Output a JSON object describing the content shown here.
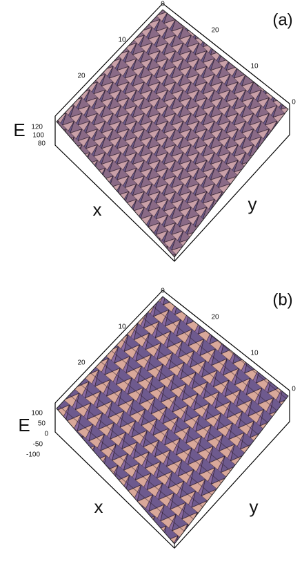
{
  "panels": [
    {
      "label": "(a)",
      "z_label": "E",
      "x_label": "x",
      "y_label": "y",
      "z_ticks": [
        120,
        100,
        80
      ],
      "x_ticks": [
        0,
        10,
        20
      ],
      "y_ticks": [
        20,
        10,
        0
      ]
    },
    {
      "label": "(b)",
      "z_label": "E",
      "x_label": "x",
      "y_label": "y",
      "z_ticks": [
        100,
        50,
        0,
        -50,
        -100
      ],
      "x_ticks": [
        0,
        10,
        20
      ],
      "y_ticks": [
        20,
        10,
        0
      ]
    }
  ]
}
